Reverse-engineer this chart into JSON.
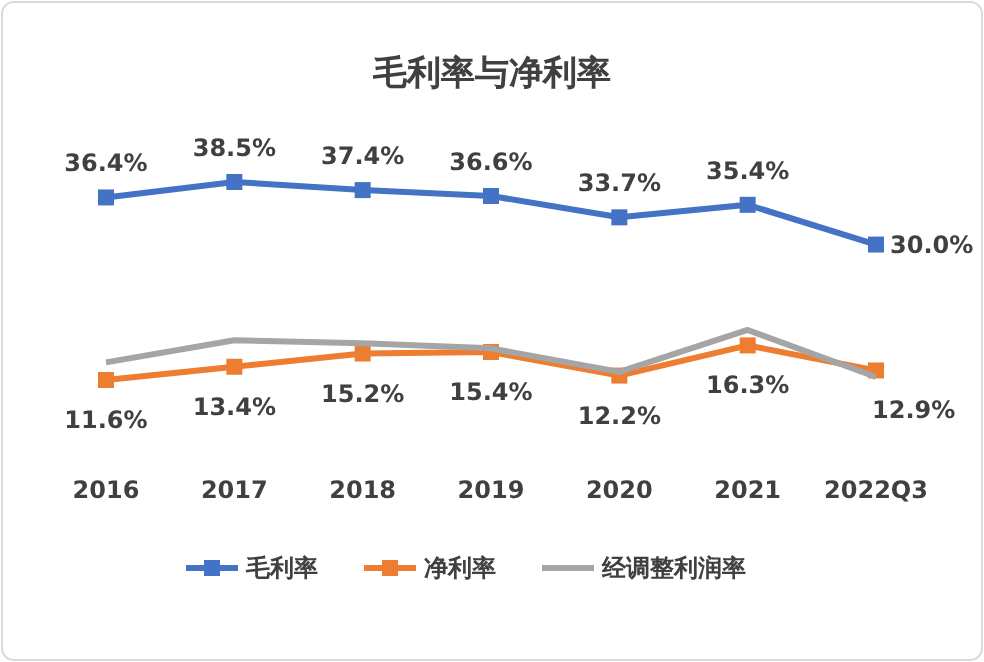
{
  "chart_data": {
    "type": "line",
    "title": "毛利率与净利率",
    "categories": [
      "2016",
      "2017",
      "2018",
      "2019",
      "2020",
      "2021",
      "2022Q3"
    ],
    "series": [
      {
        "name": "毛利率",
        "color": "#4472c4",
        "marker": "square",
        "values": [
          36.4,
          38.5,
          37.4,
          36.6,
          33.7,
          35.4,
          30.0
        ],
        "value_labels": [
          "36.4%",
          "38.5%",
          "37.4%",
          "36.6%",
          "33.7%",
          "35.4%",
          "30.0%"
        ]
      },
      {
        "name": "净利率",
        "color": "#ed7d31",
        "marker": "square",
        "values": [
          11.6,
          13.4,
          15.2,
          15.4,
          12.2,
          16.3,
          12.9
        ],
        "value_labels": [
          "11.6%",
          "13.4%",
          "15.2%",
          "15.4%",
          "12.2%",
          "16.3%",
          "12.9%"
        ]
      },
      {
        "name": "经调整利润率",
        "color": "#a5a5a5",
        "marker": "none",
        "values": [
          14.0,
          17.0,
          16.6,
          15.9,
          12.7,
          18.4,
          12.0
        ]
      }
    ],
    "legend": "bottom",
    "line_style": "solid",
    "grid": false
  }
}
